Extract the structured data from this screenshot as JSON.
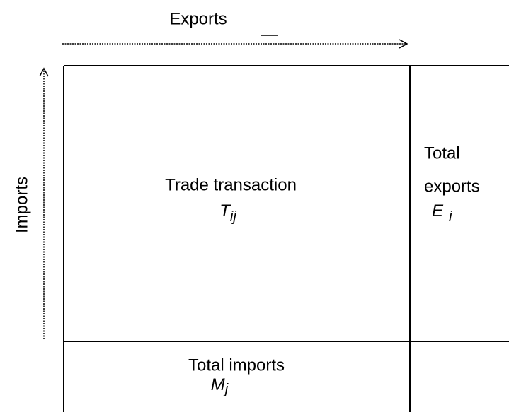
{
  "axes": {
    "top": "Exports",
    "left": "Imports"
  },
  "cells": {
    "trade": {
      "label": "Trade transaction",
      "symbol": "T",
      "subscript": "ij"
    },
    "exports": {
      "label_line1": "Total",
      "label_line2": "exports",
      "symbol": "E",
      "subscript": "i"
    },
    "imports": {
      "label": "Total imports",
      "symbol": "M",
      "subscript": "j"
    }
  }
}
